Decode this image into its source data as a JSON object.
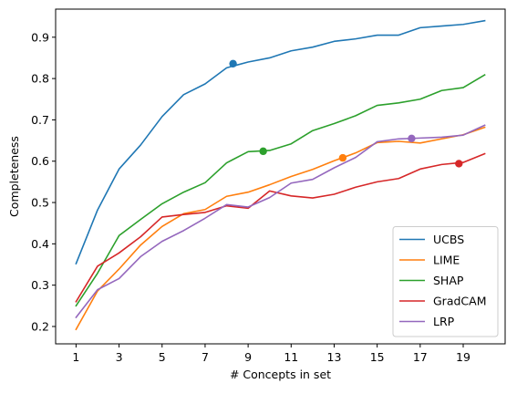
{
  "chart_data": {
    "type": "line",
    "xlabel": "# Concepts in set",
    "ylabel": "Completeness",
    "xlim": [
      0.05,
      20.95
    ],
    "ylim": [
      0.158,
      0.968
    ],
    "xticks": [
      1,
      3,
      5,
      7,
      9,
      11,
      13,
      15,
      17,
      19
    ],
    "yticks": [
      0.2,
      0.3,
      0.4,
      0.5,
      0.6,
      0.7,
      0.8,
      0.9
    ],
    "grid": false,
    "legend_position": "lower-right",
    "x": [
      1,
      2,
      3,
      4,
      5,
      6,
      7,
      8,
      9,
      10,
      11,
      12,
      13,
      14,
      15,
      16,
      17,
      18,
      19,
      20
    ],
    "series": [
      {
        "name": "UCBS",
        "color": "#1f77b4",
        "values": [
          0.352,
          0.482,
          0.581,
          0.639,
          0.708,
          0.761,
          0.787,
          0.826,
          0.84,
          0.85,
          0.867,
          0.876,
          0.89,
          0.896,
          0.905,
          0.905,
          0.923,
          0.927,
          0.931,
          0.94
        ],
        "marker": {
          "x": 8.3,
          "y": 0.836
        }
      },
      {
        "name": "LIME",
        "color": "#ff7f0e",
        "values": [
          0.193,
          0.286,
          0.339,
          0.397,
          0.442,
          0.473,
          0.483,
          0.515,
          0.525,
          0.543,
          0.563,
          0.58,
          0.601,
          0.62,
          0.645,
          0.648,
          0.644,
          0.654,
          0.664,
          0.682
        ],
        "marker": {
          "x": 13.4,
          "y": 0.608
        }
      },
      {
        "name": "SHAP",
        "color": "#2ca02c",
        "values": [
          0.25,
          0.329,
          0.42,
          0.459,
          0.497,
          0.525,
          0.548,
          0.596,
          0.623,
          0.626,
          0.642,
          0.674,
          0.691,
          0.71,
          0.735,
          0.741,
          0.75,
          0.771,
          0.778,
          0.809
        ],
        "marker": {
          "x": 9.7,
          "y": 0.624
        }
      },
      {
        "name": "GradCAM",
        "color": "#d62728",
        "values": [
          0.26,
          0.346,
          0.378,
          0.417,
          0.465,
          0.471,
          0.476,
          0.492,
          0.486,
          0.528,
          0.516,
          0.511,
          0.52,
          0.537,
          0.55,
          0.558,
          0.581,
          0.592,
          0.597,
          0.618
        ],
        "marker": {
          "x": 18.8,
          "y": 0.594
        }
      },
      {
        "name": "LRP",
        "color": "#9467bd",
        "values": [
          0.222,
          0.289,
          0.316,
          0.369,
          0.406,
          0.432,
          0.462,
          0.495,
          0.489,
          0.512,
          0.547,
          0.556,
          0.584,
          0.609,
          0.647,
          0.654,
          0.656,
          0.658,
          0.663,
          0.687
        ],
        "marker": {
          "x": 16.6,
          "y": 0.655
        }
      }
    ]
  }
}
